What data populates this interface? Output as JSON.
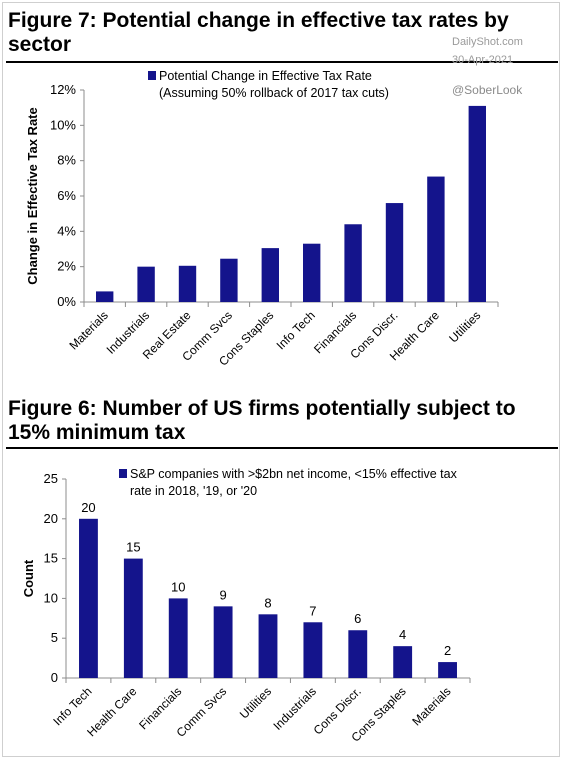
{
  "watermark": {
    "source": "DailyShot.com",
    "date": "30-Apr-2021",
    "handle": "@SoberLook"
  },
  "colors": {
    "bar": "#14148c",
    "text": "#000000",
    "axis": "#8c8c8c"
  },
  "chart_data": [
    {
      "type": "bar",
      "title": "Figure 7: Potential change in effective tax rates by sector",
      "ylabel": "Change in Effective Tax Rate",
      "xlabel": "",
      "legend": [
        "Potential Change in Effective Tax Rate",
        "(Assuming 50% rollback of 2017 tax cuts)"
      ],
      "legend_position": "top-left",
      "categories": [
        "Materials",
        "Industrials",
        "Real Estate",
        "Comm Svcs",
        "Cons Staples",
        "Info Tech",
        "Financials",
        "Cons Discr.",
        "Health Care",
        "Utilities"
      ],
      "values": [
        0.6,
        2.0,
        2.05,
        2.45,
        3.05,
        3.3,
        4.4,
        5.6,
        7.1,
        11.1
      ],
      "ylim": [
        0,
        12
      ],
      "yticks": [
        "0%",
        "2%",
        "4%",
        "6%",
        "8%",
        "10%",
        "12%"
      ],
      "grid": false
    },
    {
      "type": "bar",
      "title": "Figure 6: Number of US firms potentially subject to 15% minimum tax",
      "ylabel": "Count",
      "xlabel": "",
      "legend": [
        "S&P companies with >$2bn net income, <15% effective tax",
        "rate in 2018, '19, or '20"
      ],
      "legend_position": "top-right",
      "categories": [
        "Info Tech",
        "Health Care",
        "Financials",
        "Comm Svcs",
        "Utilities",
        "Industrials",
        "Cons Discr.",
        "Cons Staples",
        "Materials"
      ],
      "values": [
        20,
        15,
        10,
        9,
        8,
        7,
        6,
        4,
        2
      ],
      "data_labels": [
        "20",
        "15",
        "10",
        "9",
        "8",
        "7",
        "6",
        "4",
        "2"
      ],
      "ylim": [
        0,
        25
      ],
      "yticks": [
        "0",
        "5",
        "10",
        "15",
        "20",
        "25"
      ],
      "grid": false
    }
  ]
}
